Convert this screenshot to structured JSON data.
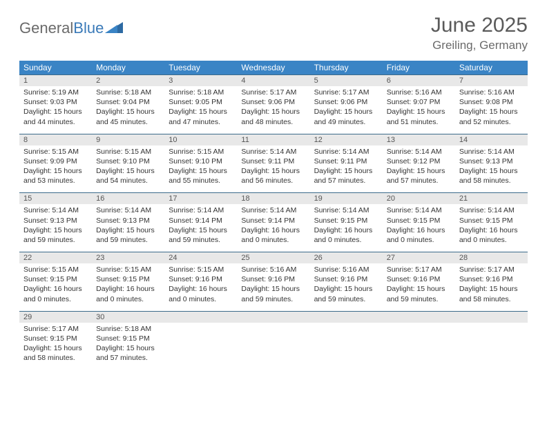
{
  "logo": {
    "word1": "General",
    "word2": "Blue"
  },
  "title": "June 2025",
  "location": "Greiling, Germany",
  "colors": {
    "header_bg": "#3a84c5",
    "header_text": "#ffffff",
    "daynum_bg": "#e8e8e8",
    "border": "#3a6a8a",
    "logo_gray": "#6a6a6a",
    "logo_blue": "#3a7ab8"
  },
  "weekdays": [
    "Sunday",
    "Monday",
    "Tuesday",
    "Wednesday",
    "Thursday",
    "Friday",
    "Saturday"
  ],
  "weeks": [
    [
      {
        "n": "1",
        "sr": "5:19 AM",
        "ss": "9:03 PM",
        "dl": "15 hours and 44 minutes."
      },
      {
        "n": "2",
        "sr": "5:18 AM",
        "ss": "9:04 PM",
        "dl": "15 hours and 45 minutes."
      },
      {
        "n": "3",
        "sr": "5:18 AM",
        "ss": "9:05 PM",
        "dl": "15 hours and 47 minutes."
      },
      {
        "n": "4",
        "sr": "5:17 AM",
        "ss": "9:06 PM",
        "dl": "15 hours and 48 minutes."
      },
      {
        "n": "5",
        "sr": "5:17 AM",
        "ss": "9:06 PM",
        "dl": "15 hours and 49 minutes."
      },
      {
        "n": "6",
        "sr": "5:16 AM",
        "ss": "9:07 PM",
        "dl": "15 hours and 51 minutes."
      },
      {
        "n": "7",
        "sr": "5:16 AM",
        "ss": "9:08 PM",
        "dl": "15 hours and 52 minutes."
      }
    ],
    [
      {
        "n": "8",
        "sr": "5:15 AM",
        "ss": "9:09 PM",
        "dl": "15 hours and 53 minutes."
      },
      {
        "n": "9",
        "sr": "5:15 AM",
        "ss": "9:10 PM",
        "dl": "15 hours and 54 minutes."
      },
      {
        "n": "10",
        "sr": "5:15 AM",
        "ss": "9:10 PM",
        "dl": "15 hours and 55 minutes."
      },
      {
        "n": "11",
        "sr": "5:14 AM",
        "ss": "9:11 PM",
        "dl": "15 hours and 56 minutes."
      },
      {
        "n": "12",
        "sr": "5:14 AM",
        "ss": "9:11 PM",
        "dl": "15 hours and 57 minutes."
      },
      {
        "n": "13",
        "sr": "5:14 AM",
        "ss": "9:12 PM",
        "dl": "15 hours and 57 minutes."
      },
      {
        "n": "14",
        "sr": "5:14 AM",
        "ss": "9:13 PM",
        "dl": "15 hours and 58 minutes."
      }
    ],
    [
      {
        "n": "15",
        "sr": "5:14 AM",
        "ss": "9:13 PM",
        "dl": "15 hours and 59 minutes."
      },
      {
        "n": "16",
        "sr": "5:14 AM",
        "ss": "9:13 PM",
        "dl": "15 hours and 59 minutes."
      },
      {
        "n": "17",
        "sr": "5:14 AM",
        "ss": "9:14 PM",
        "dl": "15 hours and 59 minutes."
      },
      {
        "n": "18",
        "sr": "5:14 AM",
        "ss": "9:14 PM",
        "dl": "16 hours and 0 minutes."
      },
      {
        "n": "19",
        "sr": "5:14 AM",
        "ss": "9:15 PM",
        "dl": "16 hours and 0 minutes."
      },
      {
        "n": "20",
        "sr": "5:14 AM",
        "ss": "9:15 PM",
        "dl": "16 hours and 0 minutes."
      },
      {
        "n": "21",
        "sr": "5:14 AM",
        "ss": "9:15 PM",
        "dl": "16 hours and 0 minutes."
      }
    ],
    [
      {
        "n": "22",
        "sr": "5:15 AM",
        "ss": "9:15 PM",
        "dl": "16 hours and 0 minutes."
      },
      {
        "n": "23",
        "sr": "5:15 AM",
        "ss": "9:15 PM",
        "dl": "16 hours and 0 minutes."
      },
      {
        "n": "24",
        "sr": "5:15 AM",
        "ss": "9:16 PM",
        "dl": "16 hours and 0 minutes."
      },
      {
        "n": "25",
        "sr": "5:16 AM",
        "ss": "9:16 PM",
        "dl": "15 hours and 59 minutes."
      },
      {
        "n": "26",
        "sr": "5:16 AM",
        "ss": "9:16 PM",
        "dl": "15 hours and 59 minutes."
      },
      {
        "n": "27",
        "sr": "5:17 AM",
        "ss": "9:16 PM",
        "dl": "15 hours and 59 minutes."
      },
      {
        "n": "28",
        "sr": "5:17 AM",
        "ss": "9:16 PM",
        "dl": "15 hours and 58 minutes."
      }
    ],
    [
      {
        "n": "29",
        "sr": "5:17 AM",
        "ss": "9:15 PM",
        "dl": "15 hours and 58 minutes."
      },
      {
        "n": "30",
        "sr": "5:18 AM",
        "ss": "9:15 PM",
        "dl": "15 hours and 57 minutes."
      },
      null,
      null,
      null,
      null,
      null
    ]
  ],
  "labels": {
    "sunrise": "Sunrise: ",
    "sunset": "Sunset: ",
    "daylight": "Daylight: "
  }
}
